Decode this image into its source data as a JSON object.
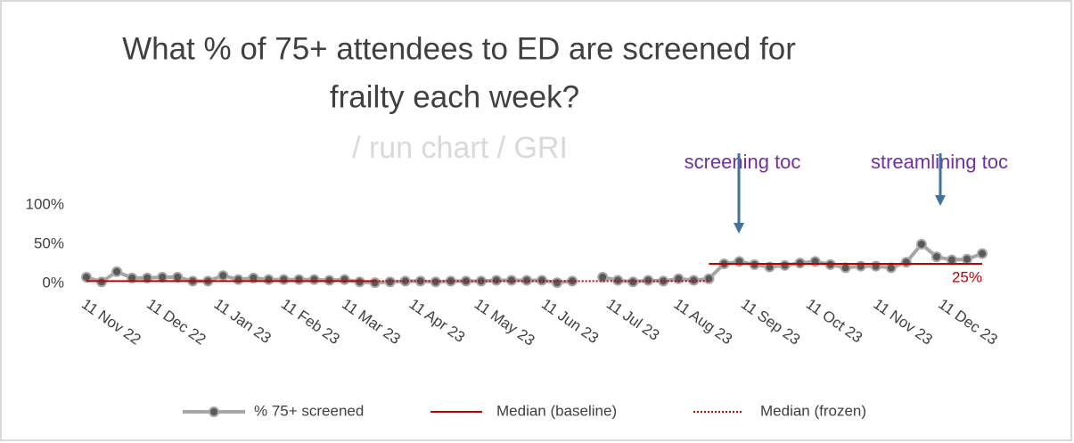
{
  "chart_data": {
    "type": "line",
    "title": [
      "What % of 75+ attendees to ED are screened for",
      "frailty each week?"
    ],
    "subtitle": "/ run chart / GRI",
    "annotations": [
      "screening toc",
      "streamlining toc"
    ],
    "median_label": "25%",
    "x": [
      "2022-11-11",
      "2022-11-18",
      "2022-11-25",
      "2022-12-02",
      "2022-12-09",
      "2022-12-16",
      "2022-12-23",
      "2022-12-30",
      "2023-01-06",
      "2023-01-13",
      "2023-01-20",
      "2023-01-27",
      "2023-02-03",
      "2023-02-10",
      "2023-02-17",
      "2023-02-24",
      "2023-03-03",
      "2023-03-10",
      "2023-03-17",
      "2023-03-24",
      "2023-03-31",
      "2023-04-07",
      "2023-04-14",
      "2023-04-21",
      "2023-04-28",
      "2023-05-05",
      "2023-05-12",
      "2023-05-19",
      "2023-05-26",
      "2023-06-02",
      "2023-06-09",
      "2023-06-16",
      "2023-06-23",
      "2023-06-30",
      "2023-07-07",
      "2023-07-14",
      "2023-07-21",
      "2023-07-28",
      "2023-08-04",
      "2023-08-11",
      "2023-08-18",
      "2023-08-25",
      "2023-09-01",
      "2023-09-08",
      "2023-09-15",
      "2023-09-22",
      "2023-09-29",
      "2023-10-06",
      "2023-10-13",
      "2023-10-20",
      "2023-10-27",
      "2023-11-03",
      "2023-11-10",
      "2023-11-17",
      "2023-11-24",
      "2023-12-01",
      "2023-12-08",
      "2023-12-15",
      "2023-12-22",
      "2023-12-29"
    ],
    "series": [
      {
        "name": "% 75+ screened",
        "color": "#a6a6a6",
        "marker_color": "#595959",
        "style": "solid",
        "values": [
          8,
          2,
          15,
          7,
          7,
          8,
          8,
          3,
          3,
          10,
          5,
          7,
          5,
          5,
          5,
          5,
          4,
          5,
          2,
          1,
          2,
          3,
          3,
          2,
          3,
          3,
          3,
          4,
          4,
          4,
          4,
          1,
          3,
          null,
          8,
          4,
          2,
          4,
          3,
          6,
          4,
          6,
          25,
          28,
          24,
          21,
          23,
          26,
          28,
          24,
          20,
          22,
          22,
          20,
          27,
          50,
          34,
          30,
          31,
          38
        ]
      },
      {
        "name": "Median (baseline)",
        "color": "#c00000",
        "style": "solid",
        "values": [
          3,
          3,
          3,
          3,
          3,
          3,
          3,
          3,
          3,
          3,
          3,
          3,
          3,
          3,
          3,
          3,
          3,
          3,
          3,
          3,
          null,
          null,
          null,
          null,
          null,
          null,
          null,
          null,
          null,
          null,
          null,
          null,
          null,
          null,
          null,
          null,
          null,
          null,
          null,
          null,
          null,
          25,
          25,
          25,
          25,
          25,
          25,
          25,
          25,
          25,
          25,
          25,
          25,
          25,
          25,
          25,
          25,
          25,
          25,
          25
        ]
      },
      {
        "name": "Median (frozen)",
        "color": "#c00000",
        "style": "dotted",
        "values": [
          null,
          null,
          null,
          null,
          null,
          null,
          null,
          null,
          null,
          null,
          null,
          null,
          null,
          null,
          null,
          null,
          null,
          null,
          null,
          3,
          3,
          3,
          3,
          3,
          3,
          3,
          3,
          3,
          3,
          3,
          3,
          3,
          3,
          3,
          3,
          3,
          3,
          3,
          3,
          3,
          3,
          3,
          null,
          null,
          null,
          null,
          null,
          null,
          null,
          null,
          null,
          null,
          null,
          null,
          null,
          null,
          null,
          null,
          null,
          null
        ]
      }
    ],
    "xlim": [
      "2022-11-11",
      "2023-12-29"
    ],
    "xticks": [
      {
        "value": "2022-11-11",
        "label": "11 Nov 22"
      },
      {
        "value": "2022-12-11",
        "label": "11 Dec 22"
      },
      {
        "value": "2023-01-11",
        "label": "11 Jan 23"
      },
      {
        "value": "2023-02-11",
        "label": "11 Feb 23"
      },
      {
        "value": "2023-03-11",
        "label": "11 Mar 23"
      },
      {
        "value": "2023-04-11",
        "label": "11 Apr 23"
      },
      {
        "value": "2023-05-11",
        "label": "11 May 23"
      },
      {
        "value": "2023-06-11",
        "label": "11 Jun 23"
      },
      {
        "value": "2023-07-11",
        "label": "11 Jul 23"
      },
      {
        "value": "2023-08-11",
        "label": "11 Aug 23"
      },
      {
        "value": "2023-09-11",
        "label": "11 Sep 23"
      },
      {
        "value": "2023-10-11",
        "label": "11 Oct 23"
      },
      {
        "value": "2023-11-11",
        "label": "11 Nov 23"
      },
      {
        "value": "2023-12-11",
        "label": "11 Dec 23"
      }
    ],
    "ylim": [
      0,
      100
    ],
    "yticks": [
      {
        "value": 0,
        "label": "0%"
      },
      {
        "value": 50,
        "label": "50%"
      },
      {
        "value": 100,
        "label": "100%"
      }
    ],
    "grid": false,
    "legend": "bottom"
  }
}
